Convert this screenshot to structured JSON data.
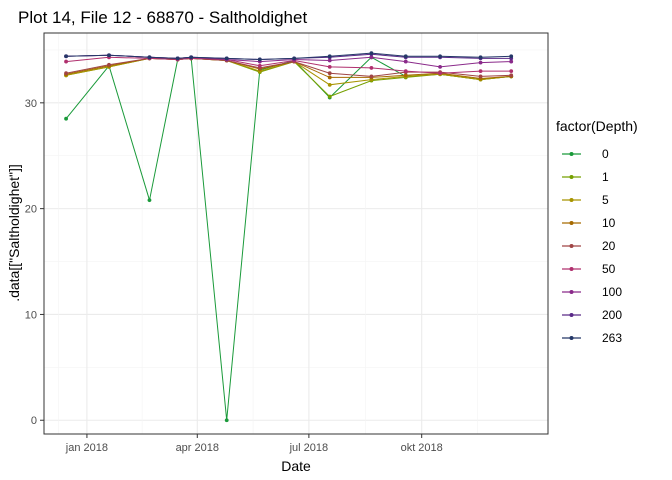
{
  "chart_data": {
    "type": "line",
    "title": "Plot 14, File 12 - 68870  -  Saltholdighet",
    "xlabel": "Date",
    "ylabel": ".data[[\"Saltholdighet\"]]",
    "legend_title": "factor(Depth)",
    "legend_position": "right",
    "grid": true,
    "x_ticks": [
      "jan 2018",
      "apr 2018",
      "jul 2018",
      "okt 2018"
    ],
    "x_tick_dates": [
      "2018-01-01",
      "2018-04-01",
      "2018-07-01",
      "2018-10-01"
    ],
    "xlim": [
      "2017-11-27",
      "2019-01-12"
    ],
    "y_ticks": [
      "0",
      "10",
      "20",
      "30"
    ],
    "ylim": [
      -1.3,
      36.6
    ],
    "x": [
      "2017-12-15",
      "2018-01-19",
      "2018-02-21",
      "2018-03-16",
      "2018-03-27",
      "2018-04-25",
      "2018-05-22",
      "2018-06-19",
      "2018-07-18",
      "2018-08-21",
      "2018-09-18",
      "2018-10-16",
      "2018-11-18",
      "2018-12-13"
    ],
    "series": [
      {
        "name": "0",
        "color": "#1a9a3a",
        "values": [
          28.5,
          33.5,
          20.8,
          34.1,
          34.2,
          0.0,
          33.1,
          34.0,
          30.5,
          34.3,
          32.5,
          32.7,
          32.2,
          32.5
        ]
      },
      {
        "name": "1",
        "color": "#76a000",
        "values": [
          32.6,
          33.4,
          34.2,
          34.1,
          34.2,
          34.0,
          32.9,
          33.9,
          30.6,
          32.1,
          32.4,
          32.7,
          32.2,
          32.5
        ]
      },
      {
        "name": "5",
        "color": "#a89400",
        "values": [
          32.6,
          33.4,
          34.2,
          34.1,
          34.2,
          34.0,
          33.0,
          33.9,
          31.7,
          32.2,
          32.5,
          32.7,
          32.2,
          32.5
        ]
      },
      {
        "name": "10",
        "color": "#a66a00",
        "values": [
          32.7,
          33.5,
          34.2,
          34.1,
          34.2,
          34.0,
          33.2,
          33.9,
          32.4,
          32.4,
          32.6,
          32.8,
          32.3,
          32.5
        ]
      },
      {
        "name": "20",
        "color": "#a04545",
        "values": [
          32.8,
          33.6,
          34.2,
          34.1,
          34.2,
          34.0,
          33.3,
          33.9,
          32.8,
          32.5,
          32.9,
          32.9,
          32.5,
          32.6
        ]
      },
      {
        "name": "50",
        "color": "#b0306e",
        "values": [
          33.9,
          34.3,
          34.2,
          34.1,
          34.2,
          34.1,
          33.5,
          34.0,
          33.4,
          33.3,
          33.0,
          32.8,
          33.0,
          33.0
        ]
      },
      {
        "name": "100",
        "color": "#8a2a8a",
        "values": [
          34.4,
          34.5,
          34.3,
          34.2,
          34.3,
          34.1,
          33.9,
          34.1,
          34.0,
          34.3,
          33.9,
          33.4,
          33.8,
          33.9
        ]
      },
      {
        "name": "200",
        "color": "#5a2a88",
        "values": [
          34.4,
          34.5,
          34.3,
          34.2,
          34.3,
          34.2,
          34.1,
          34.2,
          34.3,
          34.6,
          34.3,
          34.3,
          34.2,
          34.2
        ]
      },
      {
        "name": "263",
        "color": "#253868",
        "values": [
          34.4,
          34.5,
          34.3,
          34.2,
          34.3,
          34.2,
          34.1,
          34.2,
          34.4,
          34.7,
          34.4,
          34.4,
          34.3,
          34.4
        ]
      }
    ]
  }
}
